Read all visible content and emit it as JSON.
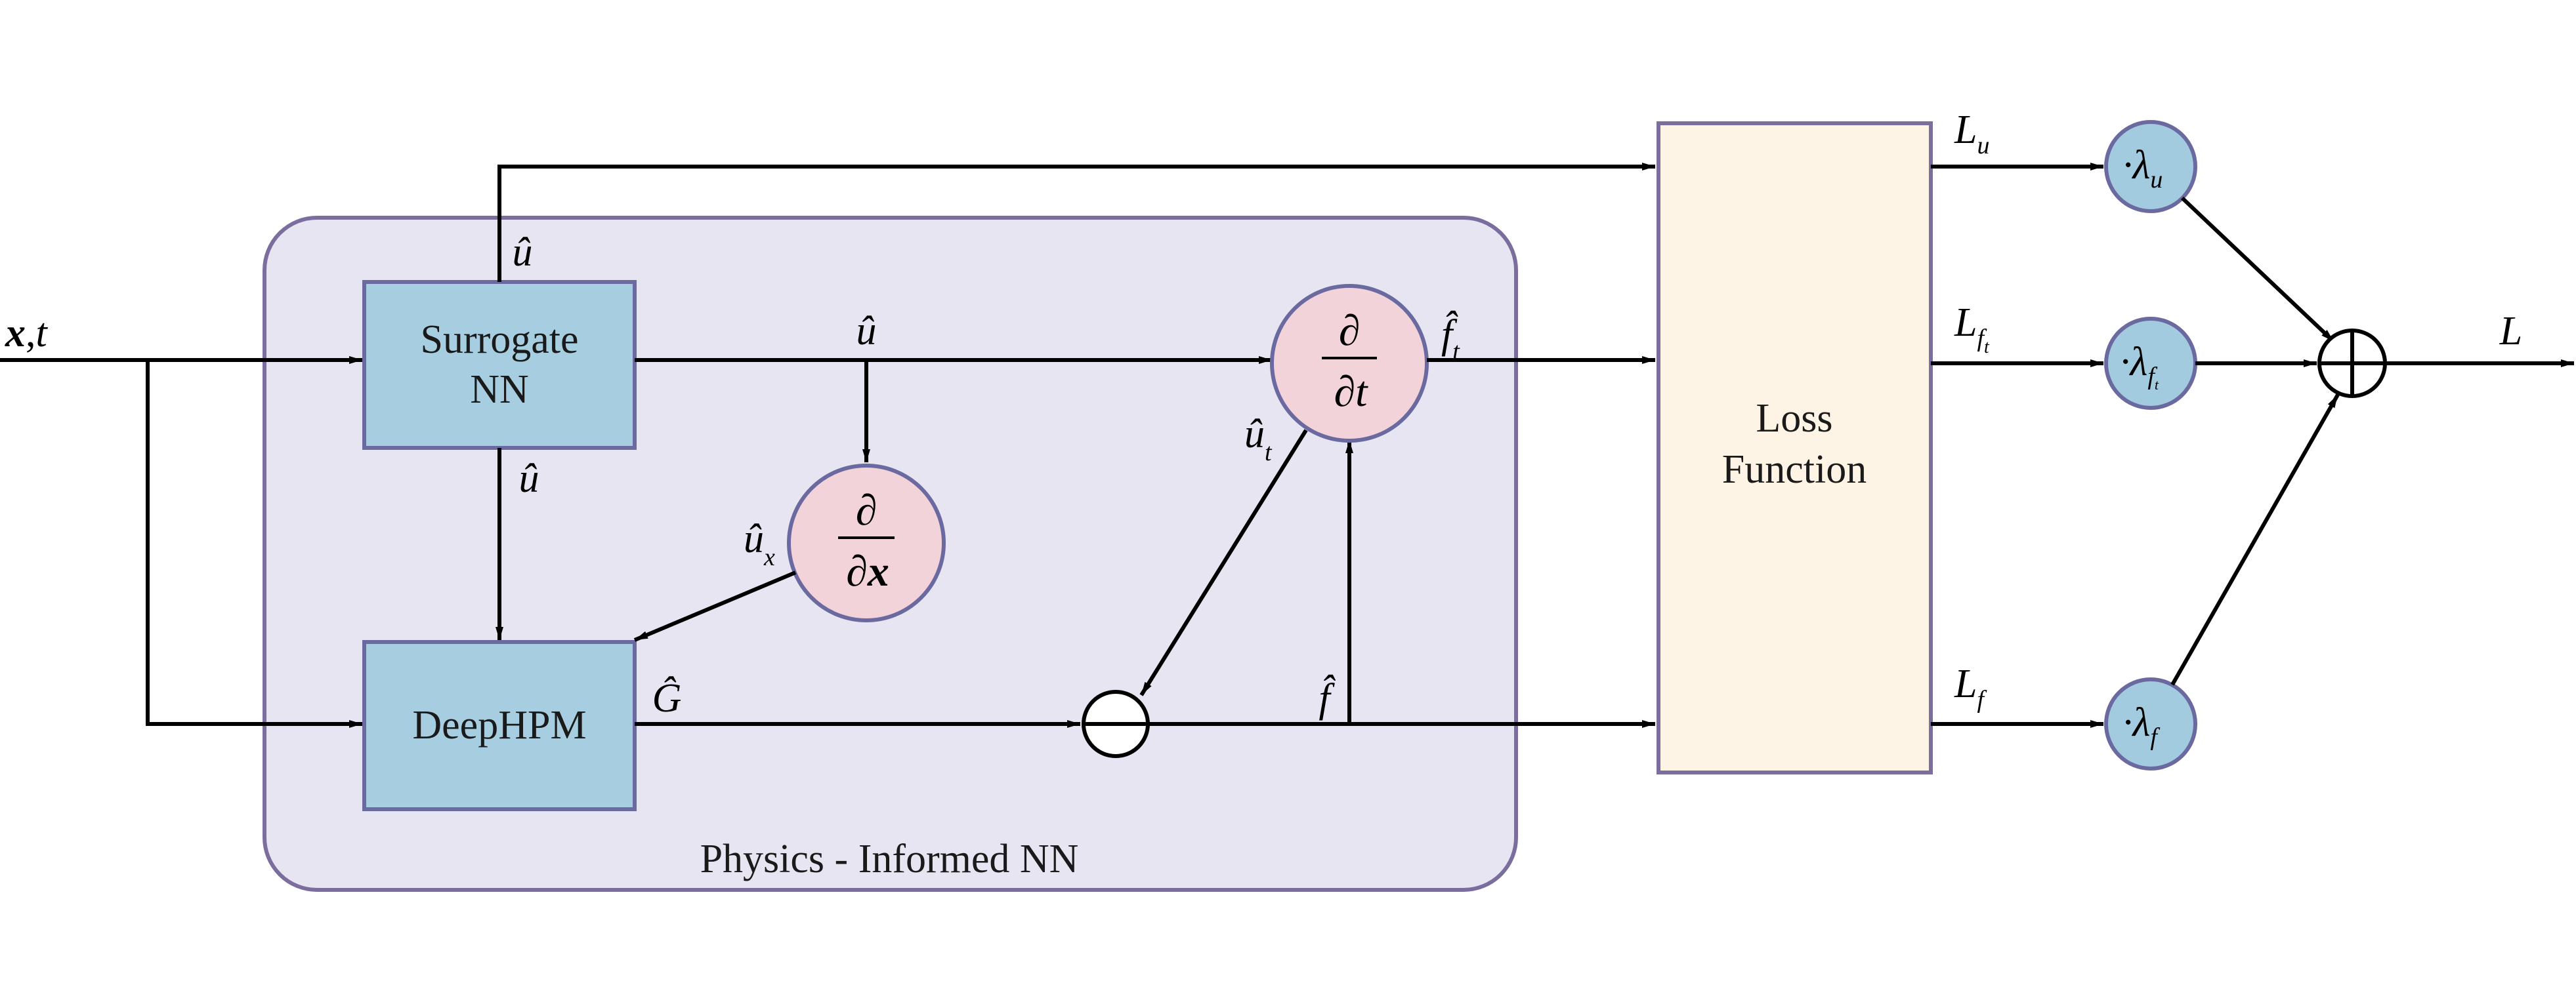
{
  "colors": {
    "pinn_panel": "#e6e5f1",
    "panel_border": "#7b6e9e",
    "nn_box": "#a7cde0",
    "nn_border": "#6b6aa0",
    "deriv_node": "#f3d3da",
    "lambda_node": "#a3cbdf",
    "loss_box": "#fdf4e6",
    "line": "#000000"
  },
  "input": {
    "x": "x",
    "sep": ",",
    "t": "t"
  },
  "pinn_panel": {
    "label": "Physics - Informed NN"
  },
  "surrogate_nn": {
    "line1": "Surrogate",
    "line2": "NN"
  },
  "deephpm": {
    "label": "DeepHPM"
  },
  "deriv_t": {
    "numerator": "∂",
    "denominator": "∂t"
  },
  "deriv_x": {
    "numerator": "∂",
    "denominator_d": "∂",
    "denominator_x": "x"
  },
  "signals": {
    "u_hat": "û",
    "u_hat_x": "û",
    "u_hat_x_sub": "x",
    "u_hat_t": "û",
    "u_hat_t_sub": "t",
    "G_hat": "Ĝ",
    "f_hat": "f̂",
    "f_hat_t": "f̂",
    "f_hat_t_sub": "t"
  },
  "loss_function": {
    "line1": "Loss",
    "line2": "Function"
  },
  "losses": {
    "Lu": "L",
    "Lu_sub": "u",
    "Lft": "L",
    "Lft_sub": "f",
    "Lft_subsub": "t",
    "Lf": "L",
    "Lf_sub": "f"
  },
  "weights": {
    "lambda_u": "·λ",
    "lambda_u_sub": "u",
    "lambda_ft": "·λ",
    "lambda_ft_sub": "f",
    "lambda_ft_subsub": "t",
    "lambda_f": "·λ",
    "lambda_f_sub": "f"
  },
  "output": {
    "label": "L"
  }
}
